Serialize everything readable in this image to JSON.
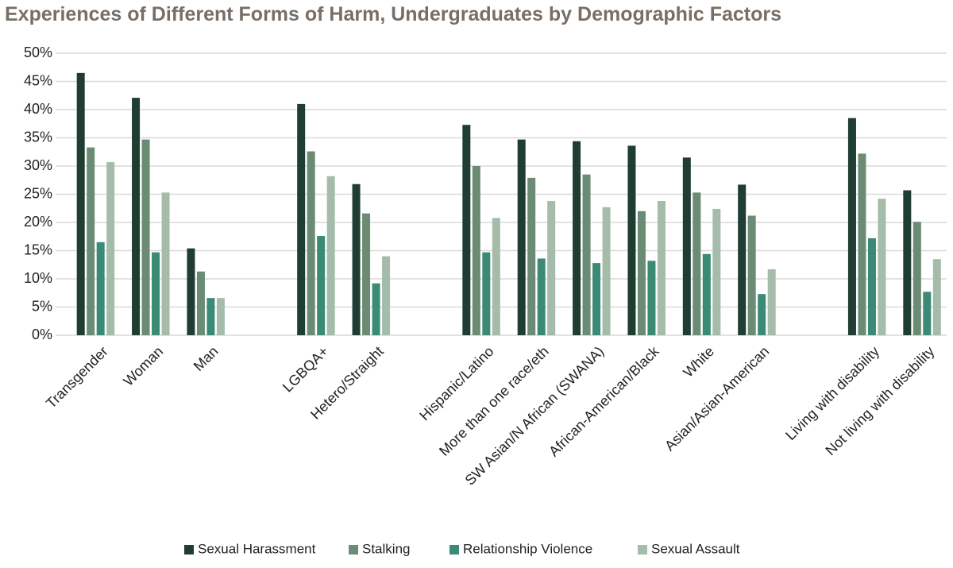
{
  "chart_data": {
    "type": "bar",
    "title": "Experiences of Different Forms of Harm, Undergraduates by Demographic Factors",
    "categories": [
      "Transgender",
      "Woman",
      "Man",
      null,
      "LGBQA+",
      "Hetero/Straight",
      null,
      "Hispanic/Latino",
      "More than one race/eth",
      "SW Asian/N African (SWANA)",
      "African-American/Black",
      "White",
      "Asian/Asian-American",
      null,
      "Living with disability",
      "Not living with disability"
    ],
    "series": [
      {
        "name": "Sexual Harassment",
        "color": "#1f3d33",
        "values": [
          46.5,
          42.1,
          15.4,
          null,
          41.0,
          26.8,
          null,
          37.3,
          34.7,
          34.4,
          33.6,
          31.5,
          26.7,
          null,
          38.5,
          25.7
        ]
      },
      {
        "name": "Stalking",
        "color": "#6b8b74",
        "values": [
          33.3,
          34.7,
          11.3,
          null,
          32.6,
          21.6,
          null,
          30.0,
          27.9,
          28.5,
          22.0,
          25.3,
          21.2,
          null,
          32.2,
          20.1
        ]
      },
      {
        "name": "Relationship Violence",
        "color": "#3b8a76",
        "values": [
          16.5,
          14.7,
          6.6,
          null,
          17.6,
          9.2,
          null,
          14.7,
          13.6,
          12.8,
          13.2,
          14.4,
          7.3,
          null,
          17.2,
          7.7
        ]
      },
      {
        "name": "Sexual Assault",
        "color": "#a4bca9",
        "values": [
          30.7,
          25.3,
          6.6,
          null,
          28.2,
          14.0,
          null,
          20.8,
          23.8,
          22.7,
          23.8,
          22.4,
          11.7,
          null,
          24.2,
          13.5
        ]
      }
    ],
    "ylim": [
      0,
      50
    ],
    "yticks": [
      {
        "value": 0,
        "label": "0%"
      },
      {
        "value": 5,
        "label": "5%"
      },
      {
        "value": 10,
        "label": "10%"
      },
      {
        "value": 15,
        "label": "15%"
      },
      {
        "value": 20,
        "label": "20%"
      },
      {
        "value": 25,
        "label": "25%"
      },
      {
        "value": 30,
        "label": "30%"
      },
      {
        "value": 35,
        "label": "35%"
      },
      {
        "value": 40,
        "label": "40%"
      },
      {
        "value": 45,
        "label": "45%"
      },
      {
        "value": 50,
        "label": "50%"
      }
    ],
    "grid": true
  }
}
